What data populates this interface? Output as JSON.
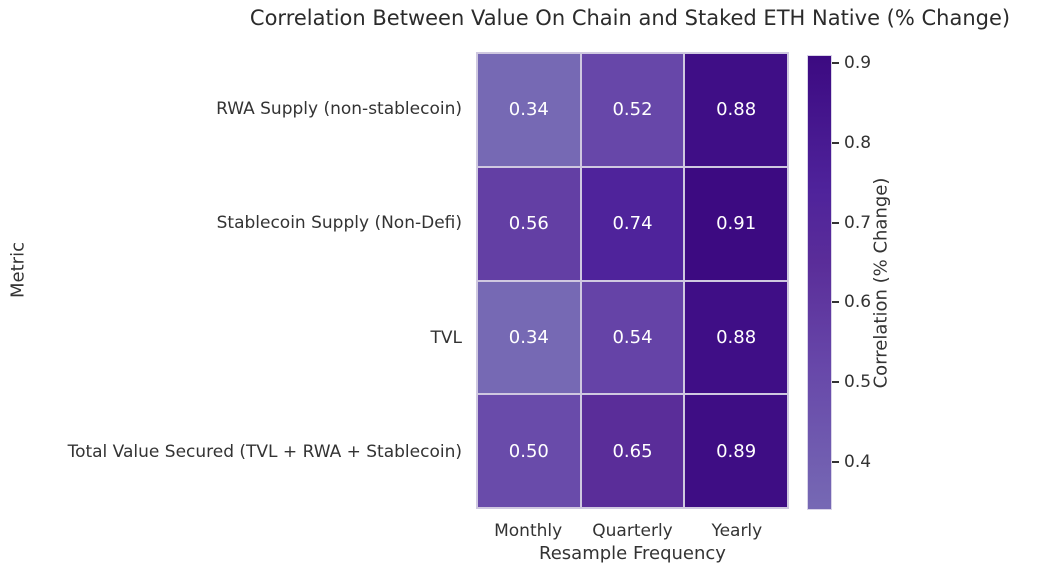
{
  "chart_data": {
    "type": "heatmap",
    "title": "Correlation Between Value On Chain and Staked ETH Native (% Change)",
    "xlabel": "Resample Frequency",
    "ylabel": "Metric",
    "columns": [
      "Monthly",
      "Quarterly",
      "Yearly"
    ],
    "rows": [
      "RWA Supply (non-stablecoin)",
      "Stablecoin Supply (Non-Defi)",
      "TVL",
      "Total Value Secured (TVL + RWA + Stablecoin)"
    ],
    "values": [
      [
        0.34,
        0.52,
        0.88
      ],
      [
        0.56,
        0.74,
        0.91
      ],
      [
        0.34,
        0.54,
        0.88
      ],
      [
        0.5,
        0.65,
        0.89
      ]
    ],
    "value_format_decimals": 2,
    "annotation_text_color": "#ffffff",
    "grid_line_color": "#cfc8e0",
    "colorbar": {
      "label": "Correlation (% Change)",
      "ticks": [
        0.4,
        0.5,
        0.6,
        0.7,
        0.8,
        0.9
      ],
      "tick_format_decimals": 1,
      "vmin": 0.34,
      "vmax": 0.91
    },
    "colormap_stops": [
      {
        "value": 0.34,
        "color": "#7669B4"
      },
      {
        "value": 0.52,
        "color": "#6747A9"
      },
      {
        "value": 0.65,
        "color": "#5A2D99"
      },
      {
        "value": 0.74,
        "color": "#4F239B"
      },
      {
        "value": 0.91,
        "color": "#3C0A81"
      }
    ],
    "legend_position": "right-colorbar",
    "grid": "off"
  }
}
